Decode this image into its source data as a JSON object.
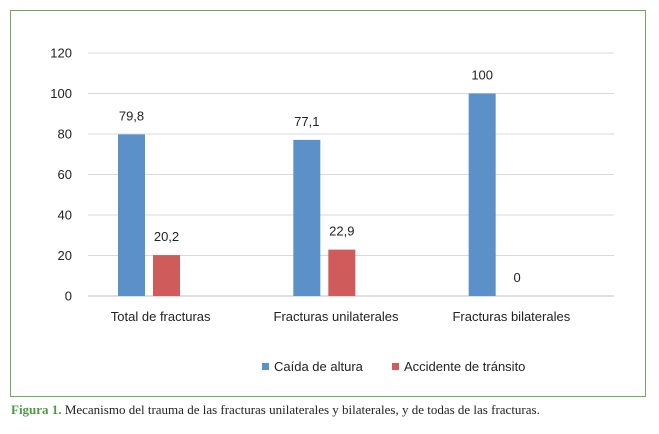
{
  "chart_data": {
    "type": "bar",
    "categories": [
      "Total de fracturas",
      "Fracturas unilaterales",
      "Fracturas bilaterales"
    ],
    "series": [
      {
        "name": "Caída de altura",
        "values": [
          79.8,
          77.1,
          100
        ],
        "labels": [
          "79,8",
          "77,1",
          "100"
        ],
        "color": "#5b90c8"
      },
      {
        "name": "Accidente de tránsito",
        "values": [
          20.2,
          22.9,
          0
        ],
        "labels": [
          "20,2",
          "22,9",
          "0"
        ],
        "color": "#cf5b5b"
      }
    ],
    "ylim": [
      0,
      120
    ],
    "yticks": [
      0,
      20,
      40,
      60,
      80,
      100,
      120
    ],
    "grid": true,
    "legend": "bottom"
  },
  "caption": {
    "lead": "Figura 1.",
    "text": " Mecanismo del trauma de las fracturas unilaterales y bilaterales, y de todas de las fracturas."
  },
  "colors": {
    "frame": "#6aab5c",
    "grid": "#d9d9d9",
    "axis": "#bfbfbf"
  }
}
